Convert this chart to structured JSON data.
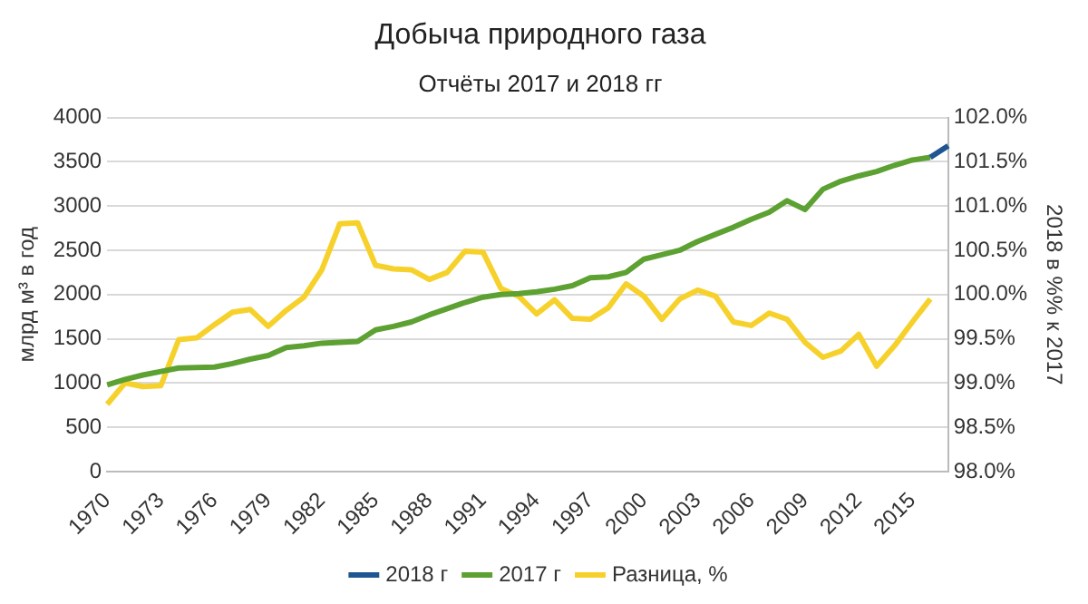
{
  "chart_data": {
    "type": "line",
    "title": "Добыча природного газа",
    "subtitle": "Отчёты 2017 и 2018 гг",
    "ylabel": "млрд м³ в год",
    "y2label": "2018 в %% к 2017",
    "categories": [
      "1970",
      null,
      null,
      "1973",
      null,
      null,
      "1976",
      null,
      null,
      "1979",
      null,
      null,
      "1982",
      null,
      null,
      "1985",
      null,
      null,
      "1988",
      null,
      null,
      "1991",
      null,
      null,
      "1994",
      null,
      null,
      "1997",
      null,
      null,
      "2000",
      null,
      null,
      "2003",
      null,
      null,
      "2006",
      null,
      null,
      "2009",
      null,
      null,
      "2012",
      null,
      null,
      "2015",
      null,
      null
    ],
    "series": [
      {
        "name": "2018 г",
        "color": "#1f5591",
        "values": [
          null,
          null,
          null,
          null,
          null,
          null,
          null,
          null,
          null,
          null,
          null,
          null,
          null,
          null,
          null,
          null,
          null,
          null,
          null,
          null,
          null,
          null,
          null,
          null,
          null,
          null,
          null,
          null,
          null,
          null,
          null,
          null,
          null,
          null,
          null,
          null,
          null,
          null,
          null,
          null,
          null,
          null,
          null,
          null,
          null,
          null,
          3550,
          3680
        ]
      },
      {
        "name": "2017 г",
        "color": "#5ca132",
        "values": [
          980,
          1040,
          1090,
          1130,
          1170,
          1175,
          1180,
          1220,
          1270,
          1310,
          1400,
          1420,
          1450,
          1460,
          1470,
          1600,
          1640,
          1690,
          1770,
          1840,
          1910,
          1970,
          2000,
          2010,
          2030,
          2060,
          2100,
          2190,
          2200,
          2250,
          2400,
          2450,
          2500,
          2600,
          2680,
          2760,
          2850,
          2930,
          3060,
          2960,
          3190,
          3280,
          3340,
          3390,
          3460,
          3520,
          3550,
          null
        ]
      },
      {
        "name": "Разница, %",
        "color": "#f7d12b",
        "axis": "y2",
        "values": [
          98.76,
          99.0,
          98.96,
          98.97,
          99.49,
          99.51,
          99.66,
          99.8,
          99.83,
          99.64,
          99.82,
          99.97,
          100.28,
          100.8,
          100.81,
          100.33,
          100.29,
          100.28,
          100.17,
          100.25,
          100.49,
          100.48,
          100.07,
          99.98,
          99.78,
          99.94,
          99.73,
          99.72,
          99.85,
          100.12,
          99.98,
          99.72,
          99.95,
          100.05,
          99.98,
          99.69,
          99.65,
          99.79,
          99.72,
          99.46,
          99.29,
          99.36,
          99.55,
          99.19,
          99.42,
          99.69,
          99.95,
          null
        ]
      }
    ],
    "ylim": [
      0,
      4000
    ],
    "yticks": [
      0,
      500,
      1000,
      1500,
      2000,
      2500,
      3000,
      3500,
      4000
    ],
    "y2lim": [
      98,
      102
    ],
    "y2ticks": [
      {
        "value": 98,
        "label": "98.0%"
      },
      {
        "value": 98.5,
        "label": "98.5%"
      },
      {
        "value": 99,
        "label": "99.0%"
      },
      {
        "value": 99.5,
        "label": "99.5%"
      },
      {
        "value": 100,
        "label": "100.0%"
      },
      {
        "value": 100.5,
        "label": "100.5%"
      },
      {
        "value": 101,
        "label": "101.0%"
      },
      {
        "value": 101.5,
        "label": "101.5%"
      },
      {
        "value": 102,
        "label": "102.0%"
      }
    ],
    "grid": "y",
    "legend": "bottom",
    "marker": "none",
    "line_style": "solid"
  }
}
